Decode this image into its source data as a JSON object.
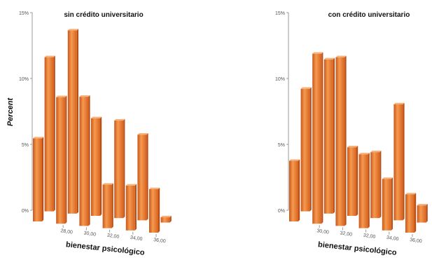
{
  "chart_data": [
    {
      "type": "bar",
      "style": "3d",
      "title": "sin crédito universitario",
      "ylabel": "Percent",
      "xlabel": "bienestar psicológico",
      "ylim": [
        0,
        15
      ],
      "y_ticks": [
        "0%",
        "5%",
        "10%",
        "15%"
      ],
      "x_ticks": [
        "28,00",
        "30,00",
        "32,00",
        "34,00",
        "36,00"
      ],
      "values": [
        6.3,
        11.7,
        9.6,
        13.9,
        9.8,
        7.4,
        3.3,
        7.4,
        3.4,
        6.5,
        3.3,
        0.4
      ],
      "bar_color": "#e8762a"
    },
    {
      "type": "bar",
      "style": "3d",
      "title": "con crédito universitario",
      "ylabel": "",
      "xlabel": "bienestar psicológico",
      "ylim": [
        0,
        15
      ],
      "y_ticks": [
        "0%",
        "5%",
        "10%",
        "15%"
      ],
      "x_ticks": [
        "30,00",
        "32,00",
        "32,00",
        "34,00",
        "36,00"
      ],
      "values": [
        4.6,
        9.3,
        12.9,
        11.7,
        12.8,
        5.2,
        5.6,
        5.0,
        3.9,
        8.8,
        2.9,
        1.3
      ],
      "bar_color": "#e8762a"
    }
  ]
}
